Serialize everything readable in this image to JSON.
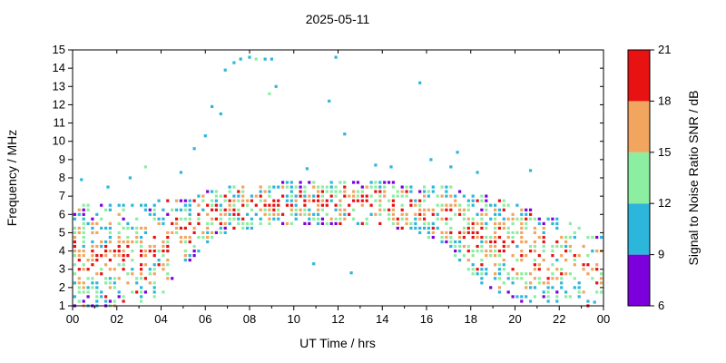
{
  "chart_data": {
    "type": "scatter",
    "title": "2025-05-11",
    "xlabel": "UT Time / hrs",
    "ylabel": "Frequency / MHz",
    "xlim": [
      0,
      24
    ],
    "ylim": [
      1,
      15
    ],
    "x_tick_labels": [
      "00",
      "02",
      "04",
      "06",
      "08",
      "10",
      "12",
      "14",
      "16",
      "18",
      "20",
      "22",
      "00"
    ],
    "x_tick_hours": [
      0,
      2,
      4,
      6,
      8,
      10,
      12,
      14,
      16,
      18,
      20,
      22,
      24
    ],
    "x_minor_tick_hours": [
      1,
      3,
      5,
      7,
      9,
      11,
      13,
      15,
      17,
      19,
      21,
      23
    ],
    "y_ticks": [
      1,
      2,
      3,
      4,
      5,
      6,
      7,
      8,
      9,
      10,
      11,
      12,
      13,
      14,
      15
    ],
    "colorbar": {
      "label": "Signal to Noise Ratio SNR / dB",
      "ticks": [
        6,
        9,
        12,
        15,
        18,
        21
      ],
      "lim": [
        6,
        21
      ],
      "colors": [
        "#7b00db",
        "#2db6db",
        "#8ceea0",
        "#f2a55e",
        "#e81212"
      ],
      "thresholds": [
        9,
        12,
        15,
        18
      ]
    },
    "point_grid": {
      "t_step": 0.2,
      "f_step": 0.25,
      "seed": 42,
      "point_size": 3.2
    },
    "band_envelope": [
      {
        "t": 0,
        "fmin": 1.0,
        "fmax": 6.6,
        "d": 0.62
      },
      {
        "t": 1,
        "fmin": 1.0,
        "fmax": 6.6,
        "d": 0.6
      },
      {
        "t": 2,
        "fmin": 1.0,
        "fmax": 6.5,
        "d": 0.5
      },
      {
        "t": 3,
        "fmin": 1.1,
        "fmax": 6.5,
        "d": 0.45
      },
      {
        "t": 4,
        "fmin": 1.6,
        "fmax": 6.8,
        "d": 0.48
      },
      {
        "t": 5,
        "fmin": 3.0,
        "fmax": 7.0,
        "d": 0.5
      },
      {
        "t": 6,
        "fmin": 4.3,
        "fmax": 7.3,
        "d": 0.55
      },
      {
        "t": 7,
        "fmin": 5.0,
        "fmax": 7.5,
        "d": 0.6
      },
      {
        "t": 8,
        "fmin": 5.2,
        "fmax": 7.6,
        "d": 0.62
      },
      {
        "t": 9,
        "fmin": 5.4,
        "fmax": 7.7,
        "d": 0.62
      },
      {
        "t": 10,
        "fmin": 5.5,
        "fmax": 7.8,
        "d": 0.62
      },
      {
        "t": 11,
        "fmin": 5.5,
        "fmax": 7.9,
        "d": 0.62
      },
      {
        "t": 12,
        "fmin": 5.5,
        "fmax": 7.9,
        "d": 0.62
      },
      {
        "t": 13,
        "fmin": 5.5,
        "fmax": 7.8,
        "d": 0.6
      },
      {
        "t": 14,
        "fmin": 5.3,
        "fmax": 7.8,
        "d": 0.58
      },
      {
        "t": 15,
        "fmin": 5.2,
        "fmax": 7.7,
        "d": 0.58
      },
      {
        "t": 16,
        "fmin": 4.8,
        "fmax": 7.6,
        "d": 0.6
      },
      {
        "t": 17,
        "fmin": 4.2,
        "fmax": 7.6,
        "d": 0.65
      },
      {
        "t": 18,
        "fmin": 2.6,
        "fmax": 7.2,
        "d": 0.62
      },
      {
        "t": 19,
        "fmin": 1.8,
        "fmax": 7.0,
        "d": 0.6
      },
      {
        "t": 20,
        "fmin": 1.2,
        "fmax": 6.6,
        "d": 0.58
      },
      {
        "t": 21,
        "fmin": 1.0,
        "fmax": 6.2,
        "d": 0.5
      },
      {
        "t": 22,
        "fmin": 1.2,
        "fmax": 5.8,
        "d": 0.4
      },
      {
        "t": 23,
        "fmin": 1.0,
        "fmax": 5.2,
        "d": 0.35
      },
      {
        "t": 24,
        "fmin": 1.0,
        "fmax": 4.8,
        "d": 0.32
      }
    ],
    "sporadic_format": [
      "t_hours",
      "f_MHz",
      "snr_dB"
    ],
    "sporadic_points": [
      [
        0.4,
        7.9,
        10
      ],
      [
        1.6,
        7.5,
        10
      ],
      [
        2.6,
        8.0,
        10
      ],
      [
        3.3,
        8.6,
        13
      ],
      [
        4.9,
        8.3,
        10
      ],
      [
        5.5,
        9.6,
        10
      ],
      [
        6.0,
        10.3,
        10
      ],
      [
        6.3,
        11.9,
        10
      ],
      [
        6.7,
        11.5,
        10
      ],
      [
        6.9,
        13.9,
        10
      ],
      [
        7.3,
        14.3,
        10
      ],
      [
        7.6,
        14.5,
        10
      ],
      [
        8.0,
        14.6,
        10
      ],
      [
        8.3,
        14.5,
        13
      ],
      [
        8.7,
        14.5,
        10
      ],
      [
        9.0,
        14.5,
        10
      ],
      [
        9.2,
        13.0,
        10
      ],
      [
        8.9,
        12.6,
        13
      ],
      [
        10.6,
        8.5,
        10
      ],
      [
        10.9,
        3.3,
        10
      ],
      [
        11.6,
        12.2,
        10
      ],
      [
        11.9,
        14.6,
        10
      ],
      [
        12.3,
        10.4,
        10
      ],
      [
        12.6,
        2.8,
        10
      ],
      [
        13.7,
        8.7,
        10
      ],
      [
        14.4,
        8.6,
        10
      ],
      [
        15.7,
        13.2,
        10
      ],
      [
        16.2,
        9.0,
        10
      ],
      [
        17.1,
        8.6,
        10
      ],
      [
        17.4,
        9.4,
        10
      ],
      [
        18.3,
        8.3,
        10
      ],
      [
        20.7,
        8.4,
        10
      ],
      [
        23.6,
        1.2,
        10
      ]
    ]
  }
}
